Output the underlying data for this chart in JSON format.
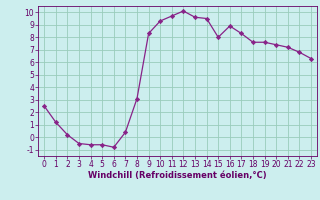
{
  "x": [
    0,
    1,
    2,
    3,
    4,
    5,
    6,
    7,
    8,
    9,
    10,
    11,
    12,
    13,
    14,
    15,
    16,
    17,
    18,
    19,
    20,
    21,
    22,
    23
  ],
  "y": [
    2.5,
    1.2,
    0.2,
    -0.5,
    -0.6,
    -0.6,
    -0.8,
    0.4,
    3.1,
    8.3,
    9.3,
    9.7,
    10.1,
    9.6,
    9.5,
    8.0,
    8.9,
    8.3,
    7.6,
    7.6,
    7.4,
    7.2,
    6.8,
    6.3
  ],
  "line_color": "#882288",
  "marker": "D",
  "marker_size": 2.2,
  "bg_color": "#cceeee",
  "grid_color": "#99ccbb",
  "xlabel": "Windchill (Refroidissement éolien,°C)",
  "xlim": [
    -0.5,
    23.5
  ],
  "ylim": [
    -1.5,
    10.5
  ],
  "yticks": [
    -1,
    0,
    1,
    2,
    3,
    4,
    5,
    6,
    7,
    8,
    9,
    10
  ],
  "xticks": [
    0,
    1,
    2,
    3,
    4,
    5,
    6,
    7,
    8,
    9,
    10,
    11,
    12,
    13,
    14,
    15,
    16,
    17,
    18,
    19,
    20,
    21,
    22,
    23
  ],
  "tick_font_size": 5.5,
  "label_font_size": 6.0,
  "spine_color": "#660066",
  "tick_color": "#660066"
}
